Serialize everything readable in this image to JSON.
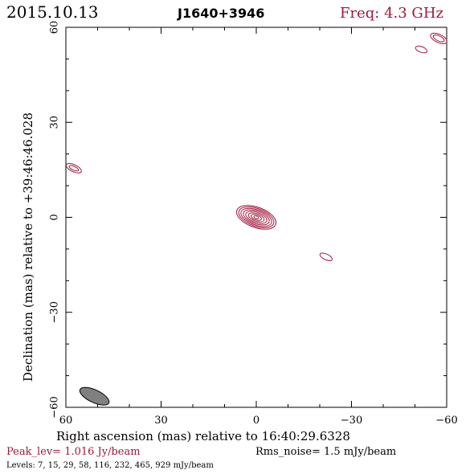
{
  "header": {
    "date": "2015.10.13",
    "source": "J1640+3946",
    "freq": "Freq: 4.3 GHz"
  },
  "colors": {
    "contour": "#a0183a",
    "beam": "#808080",
    "axis": "#000000"
  },
  "chart_data": {
    "type": "contour",
    "xlabel": "Right ascension (mas) relative to 16:40:29.6328",
    "ylabel": "Declination (mas) relative to +39:46:46.028",
    "xlim": [
      60,
      -60
    ],
    "ylim": [
      -60,
      60
    ],
    "x_ticks": [
      "60",
      "30",
      "0",
      "−30",
      "−60"
    ],
    "y_ticks": [
      "60",
      "30",
      "0",
      "−30",
      "−60"
    ],
    "x_tick_values": [
      60,
      30,
      0,
      -30,
      -60
    ],
    "y_tick_values": [
      60,
      30,
      0,
      -30,
      -60
    ],
    "peak_label": "Peak_lev=  1.016 Jy/beam",
    "rms_label": "Rms_noise=  1.5 mJy/beam",
    "levels_label": "Levels:   7,  15,  29,  58, 116, 232, 465, 929 mJy/beam",
    "levels_mJy": [
      7,
      15,
      29,
      58,
      116,
      232,
      465,
      929
    ],
    "peak_Jy_per_beam": 1.016,
    "rms_mJy_per_beam": 1.5,
    "components": [
      {
        "x": 0.0,
        "y": 0.0,
        "contours": [
          {
            "ra": 6.5,
            "rb": 3.2,
            "angle": 20
          },
          {
            "ra": 5.8,
            "rb": 2.8,
            "angle": 20
          },
          {
            "ra": 5.1,
            "rb": 2.4,
            "angle": 20
          },
          {
            "ra": 4.3,
            "rb": 2.0,
            "angle": 20
          },
          {
            "ra": 3.5,
            "rb": 1.6,
            "angle": 20
          },
          {
            "ra": 2.6,
            "rb": 1.2,
            "angle": 20
          },
          {
            "ra": 1.7,
            "rb": 0.8,
            "angle": 20
          },
          {
            "ra": 0.8,
            "rb": 0.4,
            "angle": 20
          }
        ]
      },
      {
        "x": 57.5,
        "y": 15.5,
        "contours": [
          {
            "ra": 2.6,
            "rb": 1.1,
            "angle": 25
          },
          {
            "ra": 1.6,
            "rb": 0.6,
            "angle": 25
          }
        ]
      },
      {
        "x": -22.0,
        "y": -12.5,
        "contours": [
          {
            "ra": 2.1,
            "rb": 0.9,
            "angle": 25
          }
        ]
      },
      {
        "x": -52.0,
        "y": 53.0,
        "contours": [
          {
            "ra": 1.9,
            "rb": 0.9,
            "angle": 20
          }
        ]
      },
      {
        "x": -57.5,
        "y": 56.5,
        "contours": [
          {
            "ra": 2.8,
            "rb": 1.3,
            "angle": 25
          },
          {
            "ra": 1.9,
            "rb": 0.8,
            "angle": 25
          }
        ]
      }
    ],
    "beam": {
      "x": 51.0,
      "y": -56.5,
      "major": 5.0,
      "minor": 2.0,
      "angle": 25
    }
  }
}
